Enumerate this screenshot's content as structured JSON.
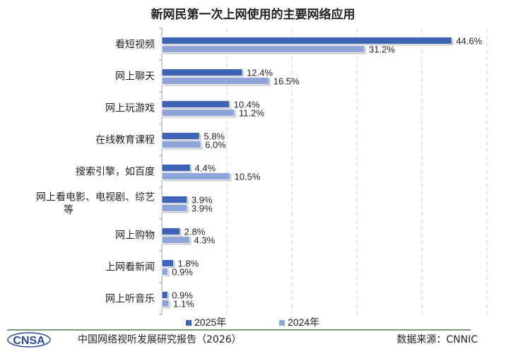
{
  "chart_data": {
    "type": "bar",
    "orientation": "horizontal",
    "title": "新网民第一次上网使用的主要网络应用",
    "categories": [
      "看短视频",
      "网上聊天",
      "网上玩游戏",
      "在线教育课程",
      "搜索引擎，如百度",
      "网上看电影、电视剧、综艺等",
      "网上购物",
      "上网看新闻",
      "网上听音乐"
    ],
    "series": [
      {
        "name": "2025年",
        "color": "#3F63B5",
        "values": [
          44.6,
          12.4,
          10.4,
          5.8,
          4.4,
          3.9,
          2.8,
          1.8,
          0.9
        ]
      },
      {
        "name": "2024年",
        "color": "#8FA5DA",
        "values": [
          31.2,
          16.5,
          11.2,
          6.0,
          10.5,
          3.9,
          4.3,
          0.9,
          1.1
        ]
      }
    ],
    "value_suffix": "%",
    "xlim": [
      0,
      50
    ],
    "grid": "vertical dashed",
    "legend": "bottom"
  },
  "footer": {
    "logo": "CNSA",
    "report": "中国网络视听发展研究报告（2026）",
    "source": "数据来源：CNNIC"
  }
}
